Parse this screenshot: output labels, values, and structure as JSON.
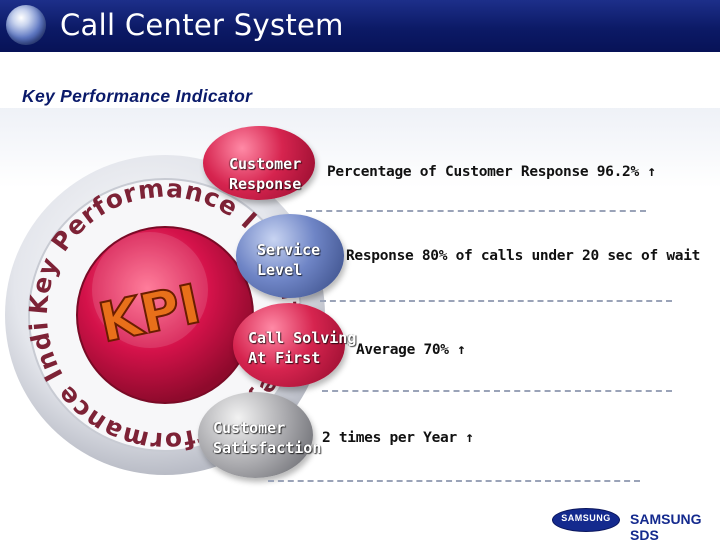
{
  "header": {
    "title": "Call Center System",
    "subtitle": "Key Performance Indicator"
  },
  "wheel": {
    "center_text": "KPI",
    "ring_text": "Key Performance Indicator"
  },
  "rows": [
    {
      "label_line1": "Customer",
      "label_line2": "Response",
      "description": "Percentage of Customer Response 96.2% ↑",
      "color": "red"
    },
    {
      "label_line1": "Service",
      "label_line2": "Level",
      "description": "Response 80% of calls under 20 sec of wait",
      "color": "blue"
    },
    {
      "label_line1": "Call Solving",
      "label_line2": "At First",
      "description": "Average 70% ↑",
      "color": "red"
    },
    {
      "label_line1": "Customer",
      "label_line2": "Satisfaction",
      "description": "2 times per Year ↑",
      "color": "gray"
    }
  ],
  "footer": {
    "logo_oval_text": "SAMSUNG",
    "logo_text": "SAMSUNG SDS"
  },
  "colors": {
    "title_bar": "#0c1a66",
    "accent_red": "#d6244f",
    "accent_blue": "#6f85c6",
    "kpi_orange": "#e8701a"
  }
}
